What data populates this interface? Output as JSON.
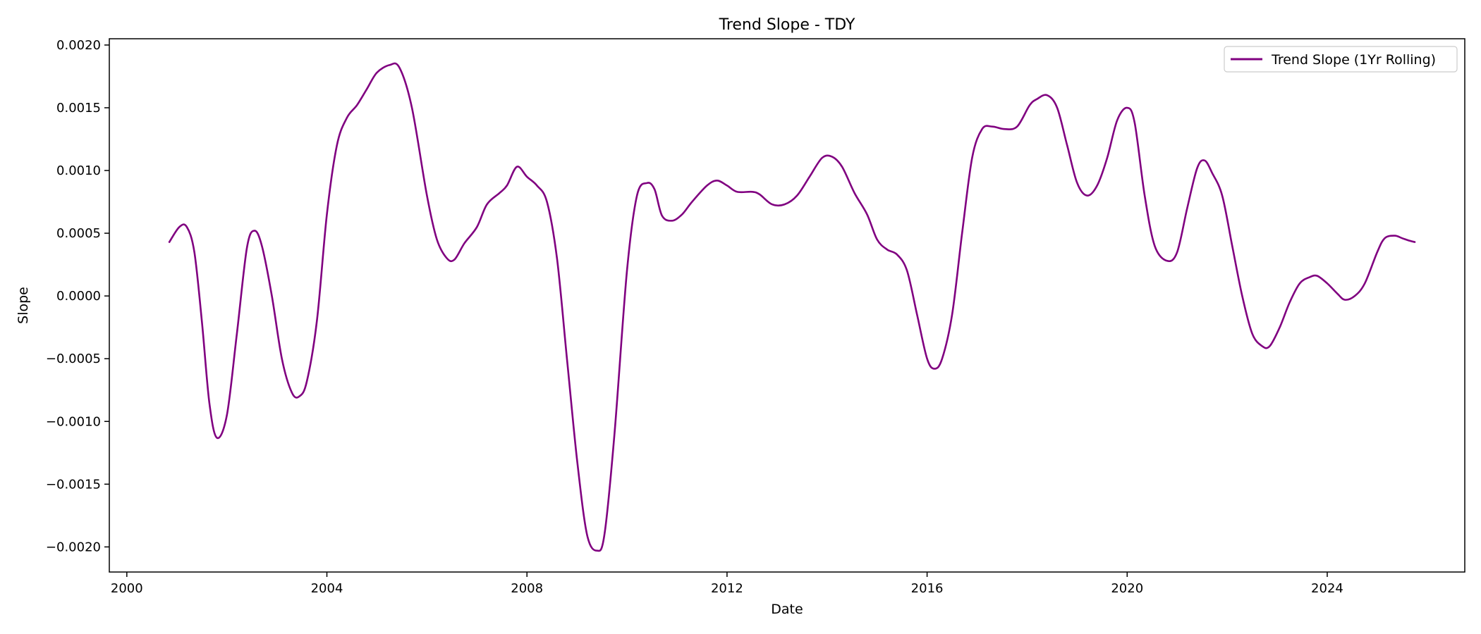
{
  "chart_data": {
    "type": "line",
    "title": "Trend Slope - TDY",
    "xlabel": "Date",
    "ylabel": "Slope",
    "xlim": [
      1999.65,
      2026.75
    ],
    "ylim": [
      -0.0022,
      0.00205
    ],
    "x_ticks": [
      {
        "value": 2000,
        "label": "2000"
      },
      {
        "value": 2004,
        "label": "2004"
      },
      {
        "value": 2008,
        "label": "2008"
      },
      {
        "value": 2012,
        "label": "2012"
      },
      {
        "value": 2016,
        "label": "2016"
      },
      {
        "value": 2020,
        "label": "2020"
      },
      {
        "value": 2024,
        "label": "2024"
      }
    ],
    "y_ticks": [
      {
        "value": 0.002,
        "label": "0.0020"
      },
      {
        "value": 0.0015,
        "label": "0.0015"
      },
      {
        "value": 0.001,
        "label": "0.0010"
      },
      {
        "value": 0.0005,
        "label": "0.0005"
      },
      {
        "value": 0.0,
        "label": "0.0000"
      },
      {
        "value": -0.0005,
        "label": "−0.0005"
      },
      {
        "value": -0.001,
        "label": "−0.0010"
      },
      {
        "value": -0.0015,
        "label": "−0.0015"
      },
      {
        "value": -0.002,
        "label": "−0.0020"
      }
    ],
    "grid": false,
    "legend_position": "top-right",
    "series": [
      {
        "name": "Trend Slope (1Yr Rolling)",
        "color": "#800080",
        "points": [
          [
            2000.85,
            0.00043
          ],
          [
            2001.05,
            0.00055
          ],
          [
            2001.2,
            0.00055
          ],
          [
            2001.35,
            0.00035
          ],
          [
            2001.5,
            -0.0002
          ],
          [
            2001.65,
            -0.00085
          ],
          [
            2001.8,
            -0.00113
          ],
          [
            2002.0,
            -0.00095
          ],
          [
            2002.2,
            -0.0003
          ],
          [
            2002.4,
            0.00038
          ],
          [
            2002.55,
            0.00052
          ],
          [
            2002.7,
            0.0004
          ],
          [
            2002.9,
            0.0
          ],
          [
            2003.1,
            -0.0005
          ],
          [
            2003.3,
            -0.00077
          ],
          [
            2003.45,
            -0.0008
          ],
          [
            2003.6,
            -0.00068
          ],
          [
            2003.8,
            -0.0002
          ],
          [
            2004.0,
            0.00065
          ],
          [
            2004.2,
            0.0012
          ],
          [
            2004.4,
            0.00142
          ],
          [
            2004.6,
            0.00152
          ],
          [
            2004.8,
            0.00165
          ],
          [
            2005.0,
            0.00178
          ],
          [
            2005.25,
            0.00184
          ],
          [
            2005.45,
            0.00182
          ],
          [
            2005.7,
            0.0015
          ],
          [
            2006.0,
            0.0008
          ],
          [
            2006.2,
            0.00045
          ],
          [
            2006.4,
            0.0003
          ],
          [
            2006.55,
            0.00029
          ],
          [
            2006.75,
            0.00042
          ],
          [
            2007.0,
            0.00055
          ],
          [
            2007.2,
            0.00073
          ],
          [
            2007.45,
            0.00082
          ],
          [
            2007.6,
            0.00088
          ],
          [
            2007.8,
            0.00103
          ],
          [
            2008.0,
            0.00095
          ],
          [
            2008.2,
            0.00088
          ],
          [
            2008.4,
            0.00075
          ],
          [
            2008.6,
            0.0003
          ],
          [
            2008.8,
            -0.0005
          ],
          [
            2009.0,
            -0.0013
          ],
          [
            2009.2,
            -0.0019
          ],
          [
            2009.4,
            -0.00203
          ],
          [
            2009.55,
            -0.0019
          ],
          [
            2009.75,
            -0.0011
          ],
          [
            2010.0,
            0.0002
          ],
          [
            2010.2,
            0.0008
          ],
          [
            2010.4,
            0.0009
          ],
          [
            2010.55,
            0.00085
          ],
          [
            2010.7,
            0.00064
          ],
          [
            2010.9,
            0.0006
          ],
          [
            2011.1,
            0.00065
          ],
          [
            2011.3,
            0.00075
          ],
          [
            2011.6,
            0.00088
          ],
          [
            2011.8,
            0.00092
          ],
          [
            2012.0,
            0.00088
          ],
          [
            2012.2,
            0.00083
          ],
          [
            2012.5,
            0.00083
          ],
          [
            2012.65,
            0.00081
          ],
          [
            2012.9,
            0.00073
          ],
          [
            2013.15,
            0.00073
          ],
          [
            2013.4,
            0.0008
          ],
          [
            2013.65,
            0.00095
          ],
          [
            2013.9,
            0.0011
          ],
          [
            2014.1,
            0.00111
          ],
          [
            2014.3,
            0.00103
          ],
          [
            2014.55,
            0.00082
          ],
          [
            2014.8,
            0.00065
          ],
          [
            2015.0,
            0.00045
          ],
          [
            2015.2,
            0.00037
          ],
          [
            2015.4,
            0.00033
          ],
          [
            2015.6,
            0.0002
          ],
          [
            2015.8,
            -0.00015
          ],
          [
            2016.0,
            -0.0005
          ],
          [
            2016.15,
            -0.00058
          ],
          [
            2016.3,
            -0.0005
          ],
          [
            2016.5,
            -0.00015
          ],
          [
            2016.7,
            0.0005
          ],
          [
            2016.9,
            0.0011
          ],
          [
            2017.1,
            0.00133
          ],
          [
            2017.3,
            0.00135
          ],
          [
            2017.55,
            0.00133
          ],
          [
            2017.8,
            0.00135
          ],
          [
            2018.05,
            0.00152
          ],
          [
            2018.2,
            0.00157
          ],
          [
            2018.4,
            0.0016
          ],
          [
            2018.6,
            0.0015
          ],
          [
            2018.8,
            0.0012
          ],
          [
            2019.0,
            0.0009
          ],
          [
            2019.2,
            0.0008
          ],
          [
            2019.4,
            0.00088
          ],
          [
            2019.6,
            0.0011
          ],
          [
            2019.8,
            0.0014
          ],
          [
            2020.0,
            0.0015
          ],
          [
            2020.15,
            0.00138
          ],
          [
            2020.35,
            0.0008
          ],
          [
            2020.55,
            0.0004
          ],
          [
            2020.8,
            0.00028
          ],
          [
            2021.0,
            0.00035
          ],
          [
            2021.2,
            0.0007
          ],
          [
            2021.4,
            0.00102
          ],
          [
            2021.55,
            0.00108
          ],
          [
            2021.7,
            0.00098
          ],
          [
            2021.9,
            0.0008
          ],
          [
            2022.1,
            0.0004
          ],
          [
            2022.3,
            0.0
          ],
          [
            2022.5,
            -0.0003
          ],
          [
            2022.7,
            -0.0004
          ],
          [
            2022.85,
            -0.0004
          ],
          [
            2023.05,
            -0.00025
          ],
          [
            2023.25,
            -5e-05
          ],
          [
            2023.45,
            0.0001
          ],
          [
            2023.65,
            0.00015
          ],
          [
            2023.8,
            0.00016
          ],
          [
            2024.0,
            0.0001
          ],
          [
            2024.2,
            2e-05
          ],
          [
            2024.35,
            -3e-05
          ],
          [
            2024.55,
            0.0
          ],
          [
            2024.75,
            0.0001
          ],
          [
            2025.0,
            0.00035
          ],
          [
            2025.15,
            0.00046
          ],
          [
            2025.35,
            0.00048
          ],
          [
            2025.5,
            0.00046
          ],
          [
            2025.65,
            0.00044
          ],
          [
            2025.75,
            0.00043
          ]
        ]
      }
    ]
  }
}
